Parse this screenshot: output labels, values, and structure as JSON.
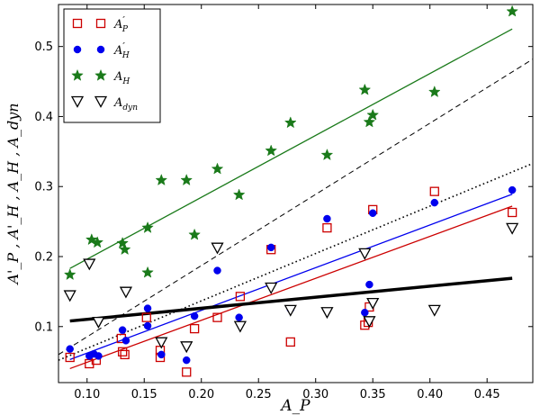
{
  "chart_data": {
    "type": "scatter",
    "title": "",
    "xlabel": "A_P",
    "ylabel": "A'_P , A'_H , A_H , A_dyn",
    "xlim": [
      0.075,
      0.49
    ],
    "ylim": [
      0.02,
      0.56
    ],
    "xticks": [
      {
        "value": 0.1,
        "label": "0.10"
      },
      {
        "value": 0.15,
        "label": "0.15"
      },
      {
        "value": 0.2,
        "label": "0.20"
      },
      {
        "value": 0.25,
        "label": "0.25"
      },
      {
        "value": 0.3,
        "label": "0.30"
      },
      {
        "value": 0.35,
        "label": "0.35"
      },
      {
        "value": 0.4,
        "label": "0.40"
      },
      {
        "value": 0.45,
        "label": "0.45"
      }
    ],
    "yticks": [
      {
        "value": 0.1,
        "label": "0.1"
      },
      {
        "value": 0.2,
        "label": "0.2"
      },
      {
        "value": 0.3,
        "label": "0.3"
      },
      {
        "value": 0.4,
        "label": "0.4"
      },
      {
        "value": 0.5,
        "label": "0.5"
      }
    ],
    "legend_position": "top-left",
    "series": [
      {
        "name": "A'_P",
        "label_main": "A",
        "label_sub": "P",
        "label_prime": true,
        "marker": "open-square",
        "color": "#cc0000",
        "points": [
          [
            0.085,
            0.056
          ],
          [
            0.102,
            0.047
          ],
          [
            0.108,
            0.052
          ],
          [
            0.13,
            0.083
          ],
          [
            0.131,
            0.064
          ],
          [
            0.133,
            0.06
          ],
          [
            0.152,
            0.113
          ],
          [
            0.164,
            0.066
          ],
          [
            0.164,
            0.056
          ],
          [
            0.187,
            0.035
          ],
          [
            0.194,
            0.097
          ],
          [
            0.214,
            0.113
          ],
          [
            0.234,
            0.143
          ],
          [
            0.261,
            0.21
          ],
          [
            0.278,
            0.078
          ],
          [
            0.31,
            0.241
          ],
          [
            0.343,
            0.102
          ],
          [
            0.346,
            0.106
          ],
          [
            0.347,
            0.128
          ],
          [
            0.35,
            0.267
          ],
          [
            0.404,
            0.293
          ],
          [
            0.472,
            0.263
          ]
        ]
      },
      {
        "name": "A'_H",
        "label_main": "A",
        "label_sub": "H",
        "label_prime": true,
        "marker": "filled-circle",
        "color": "#0000ee",
        "points": [
          [
            0.085,
            0.068
          ],
          [
            0.102,
            0.058
          ],
          [
            0.106,
            0.061
          ],
          [
            0.11,
            0.058
          ],
          [
            0.131,
            0.095
          ],
          [
            0.134,
            0.08
          ],
          [
            0.153,
            0.126
          ],
          [
            0.153,
            0.101
          ],
          [
            0.165,
            0.06
          ],
          [
            0.187,
            0.052
          ],
          [
            0.194,
            0.115
          ],
          [
            0.214,
            0.18
          ],
          [
            0.233,
            0.113
          ],
          [
            0.261,
            0.213
          ],
          [
            0.278,
            0.125
          ],
          [
            0.31,
            0.254
          ],
          [
            0.343,
            0.12
          ],
          [
            0.347,
            0.16
          ],
          [
            0.35,
            0.262
          ],
          [
            0.404,
            0.277
          ],
          [
            0.472,
            0.295
          ]
        ]
      },
      {
        "name": "A_H",
        "label_main": "A",
        "label_sub": "H",
        "label_prime": false,
        "marker": "filled-star",
        "color": "#1a7a1a",
        "points": [
          [
            0.085,
            0.174
          ],
          [
            0.104,
            0.224
          ],
          [
            0.109,
            0.22
          ],
          [
            0.131,
            0.219
          ],
          [
            0.133,
            0.21
          ],
          [
            0.153,
            0.241
          ],
          [
            0.153,
            0.177
          ],
          [
            0.165,
            0.309
          ],
          [
            0.187,
            0.309
          ],
          [
            0.194,
            0.231
          ],
          [
            0.214,
            0.325
          ],
          [
            0.233,
            0.288
          ],
          [
            0.261,
            0.351
          ],
          [
            0.278,
            0.391
          ],
          [
            0.31,
            0.345
          ],
          [
            0.343,
            0.438
          ],
          [
            0.347,
            0.392
          ],
          [
            0.35,
            0.402
          ],
          [
            0.404,
            0.435
          ],
          [
            0.472,
            0.55
          ]
        ]
      },
      {
        "name": "A_dyn",
        "label_main": "A",
        "label_sub": "dyn",
        "label_prime": false,
        "marker": "open-triangle-down",
        "color": "#000000",
        "points": [
          [
            0.085,
            0.144
          ],
          [
            0.102,
            0.189
          ],
          [
            0.11,
            0.106
          ],
          [
            0.134,
            0.149
          ],
          [
            0.165,
            0.077
          ],
          [
            0.187,
            0.071
          ],
          [
            0.214,
            0.212
          ],
          [
            0.234,
            0.1
          ],
          [
            0.261,
            0.155
          ],
          [
            0.278,
            0.123
          ],
          [
            0.31,
            0.12
          ],
          [
            0.343,
            0.204
          ],
          [
            0.347,
            0.107
          ],
          [
            0.35,
            0.133
          ],
          [
            0.404,
            0.123
          ],
          [
            0.472,
            0.24
          ]
        ]
      }
    ],
    "fit_lines": [
      {
        "name": "fit A'_P",
        "color": "#cc0000",
        "style": "solid",
        "width": 1.3,
        "x": [
          0.085,
          0.472
        ],
        "y": [
          0.04,
          0.272
        ]
      },
      {
        "name": "fit A'_H",
        "color": "#0000ee",
        "style": "solid",
        "width": 1.3,
        "x": [
          0.085,
          0.472
        ],
        "y": [
          0.053,
          0.289
        ]
      },
      {
        "name": "fit A_H",
        "color": "#1a7a1a",
        "style": "solid",
        "width": 1.3,
        "x": [
          0.085,
          0.472
        ],
        "y": [
          0.183,
          0.525
        ]
      },
      {
        "name": "fit A_dyn",
        "color": "#000000",
        "style": "solid",
        "width": 3.5,
        "x": [
          0.085,
          0.472
        ],
        "y": [
          0.108,
          0.169
        ]
      },
      {
        "name": "dashed reference",
        "color": "#000000",
        "style": "dashed",
        "width": 1.0,
        "x": [
          0.075,
          0.49
        ],
        "y": [
          0.06,
          0.482
        ]
      },
      {
        "name": "dotted reference",
        "color": "#000000",
        "style": "dotted",
        "width": 1.6,
        "x": [
          0.075,
          0.49
        ],
        "y": [
          0.052,
          0.333
        ]
      }
    ]
  }
}
